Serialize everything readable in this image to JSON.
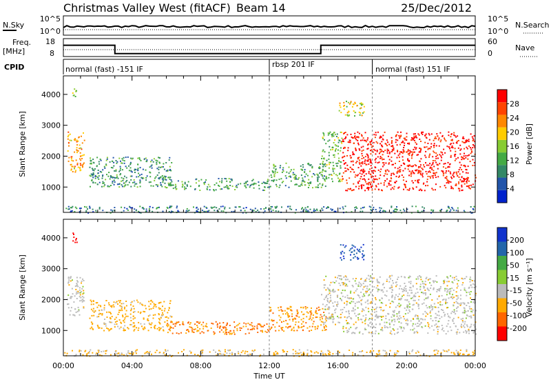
{
  "header": {
    "station": "Christmas Valley West (fitACF)",
    "beam": "Beam 14",
    "date": "25/Dec/2012"
  },
  "noise_panel": {
    "left_label": "N.Sky",
    "right_label": "N.Search",
    "left_ticks": [
      "10^5",
      "10^0"
    ],
    "right_ticks": [
      "10^5",
      "10^0"
    ]
  },
  "freq_panel": {
    "left_label_1": "Freq.",
    "left_label_2": "[MHz]",
    "right_label": "Nave",
    "left_ticks": [
      "18",
      "8"
    ],
    "right_ticks": [
      "60",
      "0"
    ]
  },
  "cpid_panel": {
    "label": "CPID",
    "segments": [
      "normal (fast) -151 IF",
      "rbsp 201 IF",
      "normal (fast) 151 IF"
    ]
  },
  "power_panel": {
    "ylabel": "Slant Range [km]",
    "colorbar_label": "Power [dB]",
    "colorbar_ticks": [
      "28",
      "24",
      "20",
      "16",
      "12",
      "8",
      "4"
    ],
    "colors": [
      "#0022cc",
      "#2255aa",
      "#338866",
      "#44aa44",
      "#88cc33",
      "#ffcc00",
      "#ff8800",
      "#ff4400",
      "#ff0000"
    ]
  },
  "velocity_panel": {
    "ylabel": "Slant Range [km]",
    "colorbar_label": "Velocity [m s⁻¹]",
    "colorbar_ticks": [
      "200",
      "100",
      "50",
      "15",
      "-15",
      "-50",
      "-100",
      "-200"
    ],
    "colors": [
      "#1133cc",
      "#2266aa",
      "#44aa44",
      "#88cc33",
      "#bbbbbb",
      "#ffaa00",
      "#ff6600",
      "#ff0000"
    ]
  },
  "xaxis": {
    "label": "Time UT",
    "ticks": [
      "00:00",
      "04:00",
      "08:00",
      "12:00",
      "16:00",
      "20:00",
      "00:00"
    ]
  },
  "chart_data": {
    "type": "heatmap",
    "x_range_hours": [
      0,
      24
    ],
    "y_ticks_km": [
      1000,
      2000,
      3000,
      4000
    ],
    "y_range_km": [
      180,
      4600
    ],
    "frequency_segments_mhz": [
      {
        "start_h": 0.0,
        "end_h": 3.0,
        "value": 15.0
      },
      {
        "start_h": 3.0,
        "end_h": 15.0,
        "value": 9.5
      },
      {
        "start_h": 15.0,
        "end_h": 24.0,
        "value": 15.0
      }
    ],
    "nave_level": 10,
    "cpid_boundaries_h": [
      12.0,
      18.0
    ],
    "echo_regions": [
      {
        "t0": 0.2,
        "t1": 1.2,
        "r0": 1500,
        "r1": 2800,
        "power": 20,
        "velocity": 0
      },
      {
        "t0": 1.5,
        "t1": 6.3,
        "r0": 1000,
        "r1": 2000,
        "power": 8,
        "velocity": -30
      },
      {
        "t0": 6.0,
        "t1": 12.0,
        "r0": 900,
        "r1": 1300,
        "power": 9,
        "velocity": -55
      },
      {
        "t0": 12.0,
        "t1": 15.3,
        "r0": 1000,
        "r1": 1800,
        "power": 10,
        "velocity": -45
      },
      {
        "t0": 15.0,
        "t1": 16.2,
        "r0": 1200,
        "r1": 2800,
        "power": 12,
        "velocity": 0
      },
      {
        "t0": 16.2,
        "t1": 24.0,
        "r0": 900,
        "r1": 2800,
        "power": 28,
        "velocity": 0
      },
      {
        "t0": 16.0,
        "t1": 17.5,
        "r0": 3300,
        "r1": 3800,
        "power": 16,
        "velocity": 150
      },
      {
        "t0": 0.5,
        "t1": 0.8,
        "r0": 3800,
        "r1": 4200,
        "power": 12,
        "velocity": -200
      },
      {
        "t0": 0.0,
        "t1": 24.0,
        "r0": 180,
        "r1": 400,
        "power": 6,
        "velocity": -20
      }
    ]
  }
}
